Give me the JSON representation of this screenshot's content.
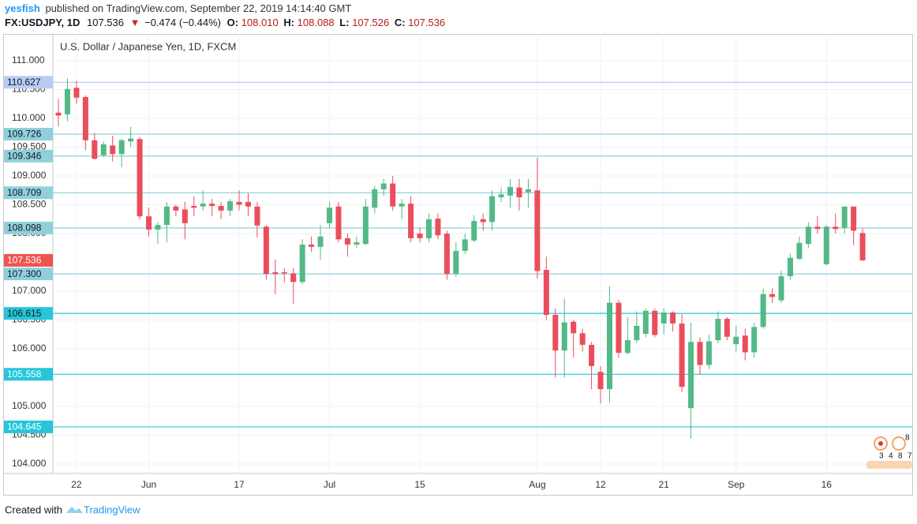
{
  "header": {
    "author": "yesfish",
    "published": "published on TradingView.com, September 22, 2019 14:14:40 GMT",
    "symbol": "FX:USDJPY, 1D",
    "price": "107.536",
    "change_arrow": "▼",
    "change": "−0.474 (−0.44%)",
    "o_label": "O:",
    "open": "108.010",
    "h_label": "H:",
    "high": "108.088",
    "l_label": "L:",
    "low": "107.526",
    "c_label": "C:",
    "close": "107.536"
  },
  "chart_data": {
    "type": "candlestick",
    "title": "U.S. Dollar / Japanese Yen, 1D, FXCM",
    "up_color": "#53b987",
    "down_color": "#eb4d5c",
    "last_color": "#ef5350",
    "grid": true,
    "categories": [
      null,
      null,
      "22",
      null,
      null,
      null,
      null,
      null,
      null,
      null,
      "Jun",
      null,
      null,
      null,
      null,
      null,
      null,
      null,
      null,
      null,
      "17",
      null,
      null,
      null,
      null,
      null,
      null,
      null,
      null,
      null,
      "Jul",
      null,
      null,
      null,
      null,
      null,
      null,
      null,
      null,
      null,
      "15",
      null,
      null,
      null,
      null,
      null,
      null,
      null,
      null,
      null,
      null,
      null,
      null,
      "Aug",
      null,
      null,
      null,
      null,
      null,
      null,
      "12",
      null,
      null,
      null,
      null,
      null,
      null,
      "21",
      null,
      null,
      null,
      null,
      null,
      null,
      null,
      "Sep",
      null,
      null,
      null,
      null,
      null,
      null,
      null,
      null,
      null,
      "16",
      null,
      null,
      null,
      null
    ],
    "open": [
      110.1,
      110.07,
      110.53,
      110.37,
      109.62,
      109.36,
      109.53,
      109.38,
      109.6,
      109.64,
      108.3,
      108.07,
      108.15,
      108.47,
      108.42,
      108.48,
      108.47,
      108.52,
      108.48,
      108.4,
      108.55,
      108.55,
      108.47,
      108.12,
      107.33,
      107.33,
      107.31,
      107.16,
      107.81,
      107.77,
      108.18,
      108.47,
      107.92,
      107.81,
      107.82,
      108.45,
      108.77,
      108.87,
      108.47,
      108.52,
      108.0,
      107.92,
      108.26,
      108.0,
      107.3,
      107.7,
      107.88,
      108.25,
      108.2,
      108.63,
      108.66,
      108.8,
      108.72,
      108.75,
      107.37,
      106.59,
      105.97,
      106.47,
      106.27,
      106.07,
      105.6,
      105.3,
      106.8,
      105.93,
      106.15,
      106.26,
      106.66,
      106.44,
      106.63,
      106.44,
      104.97,
      106.12,
      105.72,
      106.15,
      106.52,
      106.08,
      106.23,
      105.94,
      106.38,
      106.95,
      106.84,
      107.26,
      107.56,
      107.82,
      108.12,
      107.47,
      108.12,
      108.1,
      108.47,
      108.01
    ],
    "high": [
      110.34,
      110.7,
      110.65,
      110.4,
      109.75,
      109.6,
      109.7,
      109.65,
      109.85,
      109.68,
      108.45,
      108.2,
      108.55,
      108.5,
      108.55,
      108.65,
      108.75,
      108.6,
      108.55,
      108.6,
      108.75,
      108.7,
      108.55,
      108.15,
      107.55,
      107.4,
      107.4,
      107.9,
      107.95,
      108.15,
      108.55,
      108.55,
      108.0,
      107.95,
      108.6,
      108.83,
      108.95,
      109.0,
      108.6,
      108.65,
      108.1,
      108.35,
      108.35,
      108.05,
      107.85,
      108.0,
      108.32,
      108.35,
      108.75,
      108.8,
      108.95,
      108.95,
      108.95,
      109.32,
      107.6,
      106.7,
      106.87,
      106.5,
      106.35,
      106.12,
      105.7,
      107.09,
      106.85,
      106.55,
      106.65,
      106.7,
      106.7,
      106.7,
      106.65,
      106.6,
      106.45,
      106.2,
      106.25,
      106.65,
      106.55,
      106.4,
      106.35,
      106.45,
      107.05,
      107.05,
      107.35,
      107.65,
      107.95,
      108.2,
      108.3,
      108.15,
      108.35,
      108.47,
      108.47,
      108.088
    ],
    "low": [
      109.86,
      109.95,
      110.25,
      109.45,
      109.28,
      109.33,
      109.25,
      109.15,
      109.5,
      108.25,
      107.95,
      107.82,
      107.85,
      108.3,
      107.9,
      108.3,
      108.4,
      108.3,
      108.25,
      108.3,
      108.4,
      108.3,
      107.93,
      107.2,
      106.95,
      107.15,
      106.78,
      107.12,
      107.68,
      107.55,
      108.1,
      107.85,
      107.6,
      107.75,
      107.8,
      108.35,
      108.65,
      108.4,
      108.25,
      107.85,
      107.85,
      107.85,
      107.9,
      107.2,
      107.25,
      107.65,
      107.85,
      108.05,
      108.05,
      108.55,
      108.45,
      108.4,
      108.45,
      107.22,
      106.5,
      105.5,
      105.5,
      105.85,
      105.95,
      105.3,
      105.05,
      105.07,
      105.85,
      105.9,
      106.1,
      106.2,
      106.2,
      106.25,
      106.3,
      105.25,
      104.44,
      105.55,
      105.65,
      106.1,
      106.15,
      105.95,
      105.8,
      105.85,
      106.35,
      106.8,
      106.8,
      107.2,
      107.55,
      107.75,
      108.0,
      107.45,
      108.0,
      108.0,
      107.8,
      107.526
    ],
    "close": [
      110.05,
      110.51,
      110.36,
      109.62,
      109.3,
      109.55,
      109.38,
      109.62,
      109.65,
      108.3,
      108.07,
      108.15,
      108.47,
      108.4,
      108.18,
      108.45,
      108.52,
      108.48,
      108.4,
      108.56,
      108.5,
      108.47,
      108.14,
      107.3,
      107.3,
      107.31,
      107.16,
      107.81,
      107.77,
      107.95,
      108.45,
      107.9,
      107.81,
      107.85,
      108.47,
      108.77,
      108.87,
      108.47,
      108.52,
      107.92,
      107.92,
      108.25,
      107.97,
      107.3,
      107.7,
      107.9,
      108.22,
      108.2,
      108.65,
      108.68,
      108.81,
      108.63,
      108.77,
      107.35,
      106.59,
      105.97,
      106.46,
      106.27,
      106.07,
      105.7,
      105.3,
      106.8,
      105.93,
      106.15,
      106.4,
      106.66,
      106.24,
      106.63,
      106.44,
      105.34,
      106.12,
      105.72,
      106.13,
      106.52,
      106.21,
      106.21,
      105.94,
      106.38,
      106.95,
      106.9,
      107.26,
      107.58,
      107.84,
      108.12,
      108.08,
      108.12,
      108.08,
      108.47,
      108.05,
      107.536
    ],
    "ylim": [
      103.836,
      111.466
    ],
    "yticks": [
      {
        "value": 104,
        "label": "104.000"
      },
      {
        "value": 104.5,
        "label": "104.500"
      },
      {
        "value": 105,
        "label": "105.000"
      },
      {
        "value": 106,
        "label": "106.000"
      },
      {
        "value": 106.5,
        "label": "106.500"
      },
      {
        "value": 107,
        "label": "107.000"
      },
      {
        "value": 108,
        "label": "108.000"
      },
      {
        "value": 108.5,
        "label": "108.500"
      },
      {
        "value": 109,
        "label": "109.000"
      },
      {
        "value": 109.5,
        "label": "109.500"
      },
      {
        "value": 110,
        "label": "110.000"
      },
      {
        "value": 110.5,
        "label": "110.500"
      },
      {
        "value": 111,
        "label": "111.000"
      }
    ],
    "levels": [
      {
        "value": 110.627,
        "color": "#b8cdf5",
        "text_color": "#131722"
      },
      {
        "value": 109.726,
        "color": "#8fd0dc",
        "text_color": "#131722"
      },
      {
        "value": 109.346,
        "color": "#8fd0dc",
        "text_color": "#131722"
      },
      {
        "value": 108.709,
        "color": "#8fd0dc",
        "text_color": "#131722"
      },
      {
        "value": 108.098,
        "color": "#8fd0dc",
        "text_color": "#131722"
      },
      {
        "value": 107.3,
        "label": "107.300",
        "color": "#8fd0dc",
        "text_color": "#131722"
      },
      {
        "value": 106.615,
        "color": "#26c6da",
        "text_color": "#131722"
      },
      {
        "value": 105.558,
        "color": "#26c6da",
        "text_color": "#ffffff"
      },
      {
        "value": 104.645,
        "color": "#26c6da",
        "text_color": "#ffffff"
      }
    ]
  },
  "events": [
    "8",
    "3",
    "4",
    "8",
    "7"
  ],
  "footer": {
    "created": "Created with",
    "brand": "TradingView"
  }
}
